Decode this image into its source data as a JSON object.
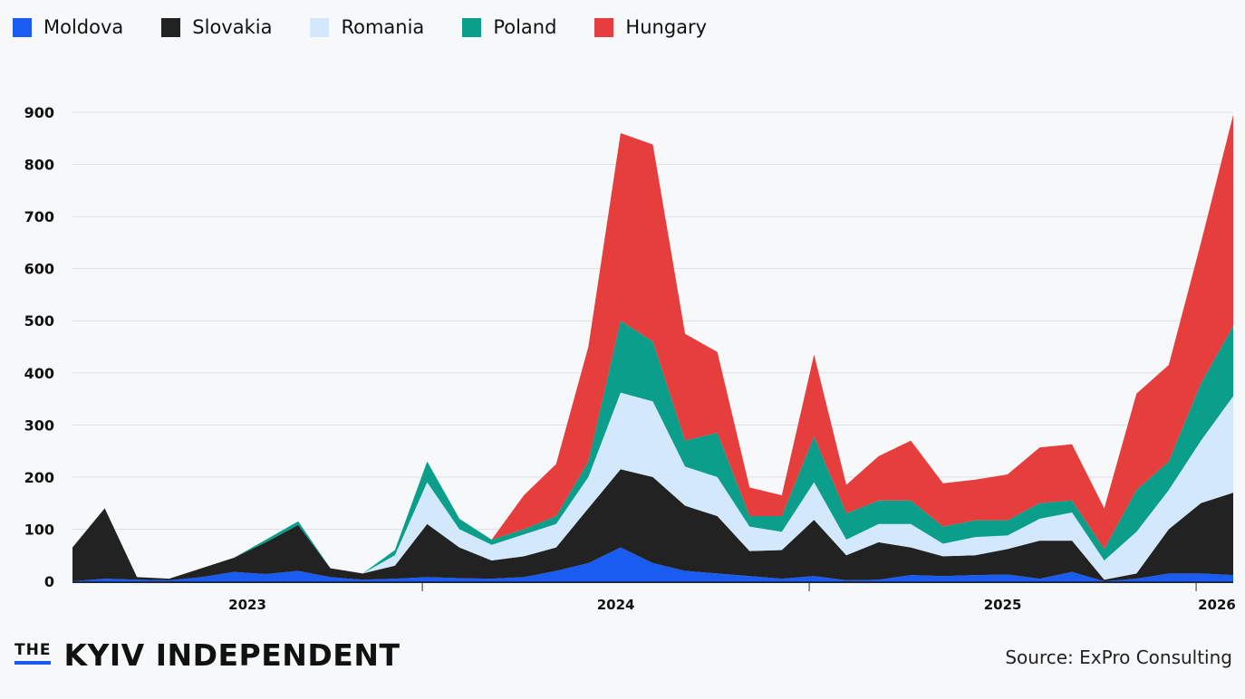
{
  "chart_data": {
    "type": "area",
    "stacked": true,
    "title": "",
    "xlabel": "",
    "ylabel": "",
    "ylim": [
      0,
      900
    ],
    "yticks": [
      0,
      100,
      200,
      300,
      400,
      500,
      600,
      700,
      800,
      900
    ],
    "xtick_labels": [
      "2023",
      "2024",
      "2025",
      "2026"
    ],
    "grid": true,
    "legend_position": "top-left",
    "x": [
      "2023-02",
      "2023-03",
      "2023-04",
      "2023-05",
      "2023-06",
      "2023-07",
      "2023-08",
      "2023-09",
      "2023-10",
      "2023-11",
      "2023-12",
      "2024-01",
      "2024-02",
      "2024-03",
      "2024-04",
      "2024-05",
      "2024-06",
      "2024-07",
      "2024-08",
      "2024-09",
      "2024-10",
      "2024-11",
      "2024-12",
      "2025-01",
      "2025-02",
      "2025-03",
      "2025-04",
      "2025-05",
      "2025-06",
      "2025-07",
      "2025-08",
      "2025-09",
      "2025-10",
      "2025-11",
      "2025-12",
      "2026-01",
      "2026-02"
    ],
    "series": [
      {
        "name": "Moldova",
        "color": "#1a5cf0",
        "values": [
          0,
          5,
          3,
          2,
          8,
          18,
          14,
          20,
          8,
          3,
          5,
          8,
          6,
          5,
          8,
          20,
          35,
          65,
          35,
          20,
          15,
          10,
          5,
          10,
          2,
          3,
          12,
          10,
          12,
          13,
          5,
          18,
          0,
          5,
          15,
          15,
          12
        ]
      },
      {
        "name": "Slovakia",
        "color": "#222222",
        "values": [
          65,
          135,
          5,
          3,
          17,
          27,
          61,
          88,
          17,
          12,
          25,
          102,
          59,
          35,
          40,
          45,
          105,
          150,
          165,
          125,
          110,
          48,
          55,
          108,
          48,
          72,
          53,
          38,
          38,
          49,
          73,
          60,
          3,
          10,
          85,
          135,
          158
        ]
      },
      {
        "name": "Romania",
        "color": "#d4e8fb",
        "values": [
          0,
          0,
          0,
          0,
          0,
          0,
          0,
          0,
          0,
          0,
          20,
          80,
          35,
          30,
          42,
          45,
          60,
          147,
          145,
          75,
          75,
          47,
          35,
          72,
          30,
          35,
          45,
          24,
          35,
          26,
          42,
          54,
          37,
          80,
          75,
          120,
          185
        ]
      },
      {
        "name": "Poland",
        "color": "#0a9e8b",
        "values": [
          0,
          0,
          0,
          0,
          0,
          0,
          5,
          7,
          0,
          0,
          10,
          40,
          20,
          10,
          10,
          15,
          30,
          138,
          115,
          50,
          85,
          20,
          30,
          88,
          50,
          45,
          45,
          33,
          32,
          29,
          30,
          23,
          22,
          80,
          55,
          110,
          135
        ]
      },
      {
        "name": "Hungary",
        "color": "#e63d3d",
        "values": [
          0,
          0,
          0,
          0,
          0,
          0,
          0,
          0,
          0,
          0,
          0,
          0,
          0,
          0,
          65,
          100,
          220,
          360,
          378,
          205,
          155,
          55,
          40,
          157,
          55,
          85,
          115,
          83,
          78,
          88,
          107,
          108,
          78,
          185,
          185,
          270,
          405
        ]
      }
    ]
  },
  "footer": {
    "logo_the": "THE",
    "logo_name": "KYIV INDEPENDENT",
    "source": "Source: ExPro Consulting"
  }
}
